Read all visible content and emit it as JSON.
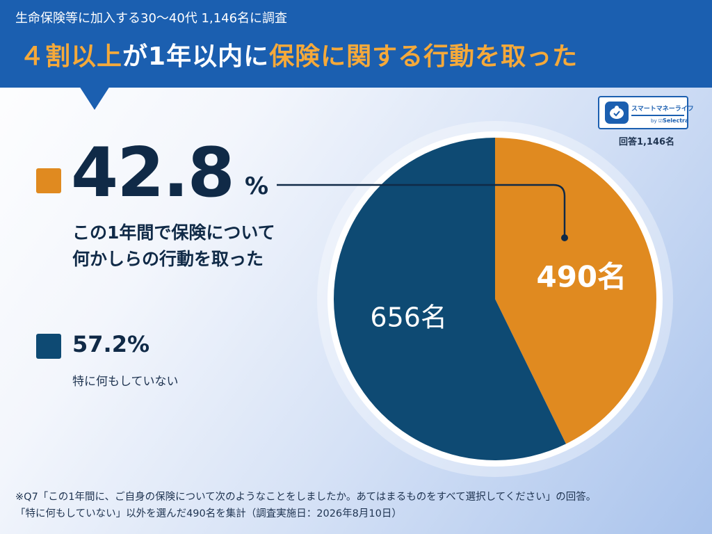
{
  "header": {
    "subtitle": "生命保険等に加入する30〜40代 1,146名に調査",
    "title_part1": "４割以上",
    "title_part2": "が1年以内に",
    "title_part3": "保険に関する行動を取った"
  },
  "logo": {
    "name": "スマートマネーライフ",
    "by": "by",
    "brand": "Selectra"
  },
  "respondents_label": "回答1,146名",
  "summary": {
    "took_action_percent": "42.8",
    "percent_sign": "%",
    "took_action_line1": "この1年間で保険について",
    "took_action_line2": "何かしらの行動を取った",
    "no_action_percent": "57.2%",
    "no_action_label": "特に何もしていない"
  },
  "colors": {
    "header_blue": "#1b5fb0",
    "accent_orange": "#f5a93a",
    "slice_orange": "#e08a20",
    "slice_navy": "#0e4a73",
    "text_dark": "#102a47"
  },
  "footnote": {
    "line1": "※Q7「この1年間に、ご自身の保険について次のようなことをしましたか。あてはまるものをすべて選択してください」の回答。",
    "line2": "「特に何もしていない」以外を選んだ490名を集計（調査実施日：2026年8月10日）"
  },
  "chart_data": {
    "type": "pie",
    "total": 1146,
    "slices": [
      {
        "label": "490名",
        "value": 490,
        "percent": 42.8,
        "color": "#e08a20"
      },
      {
        "label": "656名",
        "value": 656,
        "percent": 57.2,
        "color": "#0e4a73"
      }
    ],
    "start": "12 o'clock",
    "direction": "clockwise"
  }
}
